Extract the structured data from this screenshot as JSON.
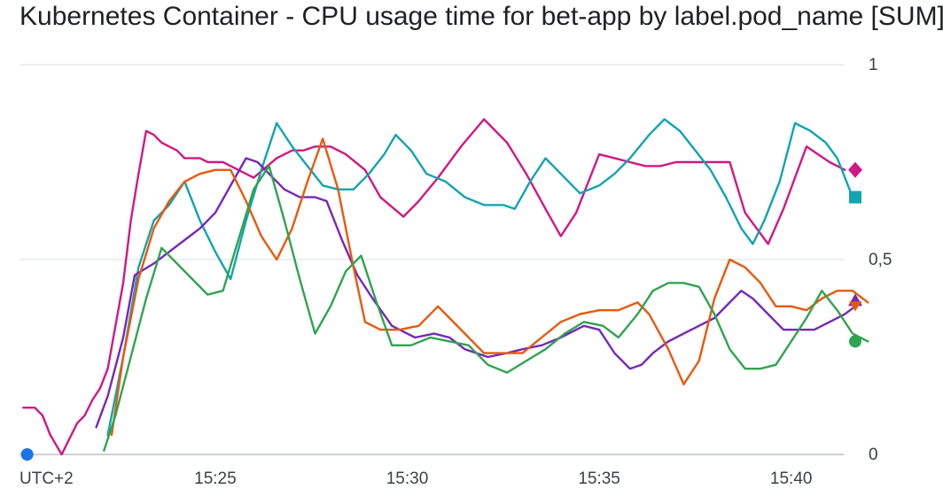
{
  "chart_data": {
    "type": "line",
    "title": "Kubernetes Container - CPU usage time for bet-app by label.pod_name [SUM]",
    "x_axis": {
      "timezone_label": "UTC+2",
      "tick_labels": [
        "15:25",
        "15:30",
        "15:35",
        "15:40"
      ],
      "tick_values": [
        25,
        30,
        35,
        40
      ],
      "range": [
        20.0,
        41.0
      ],
      "unit": "minutes past 15:00"
    },
    "y_axis": {
      "tick_labels": [
        "0",
        "0,5",
        "1"
      ],
      "tick_values": [
        0,
        0.5,
        1
      ],
      "range": [
        0,
        1
      ],
      "position": "right"
    },
    "grid": true,
    "legend": "none",
    "series": [
      {
        "color": "#1a73e8",
        "marker": "circle",
        "points": [
          [
            20.1,
            0.0
          ]
        ]
      },
      {
        "color": "#d01884",
        "marker": "diamond",
        "points": [
          [
            20.0,
            0.12
          ],
          [
            20.3,
            0.12
          ],
          [
            20.5,
            0.1
          ],
          [
            20.7,
            0.05
          ],
          [
            21.0,
            0.0
          ],
          [
            21.2,
            0.04
          ],
          [
            21.4,
            0.08
          ],
          [
            21.6,
            0.1
          ],
          [
            21.8,
            0.14
          ],
          [
            22.0,
            0.17
          ],
          [
            22.2,
            0.22
          ],
          [
            22.4,
            0.33
          ],
          [
            22.6,
            0.44
          ],
          [
            22.8,
            0.6
          ],
          [
            23.0,
            0.72
          ],
          [
            23.2,
            0.83
          ],
          [
            23.4,
            0.82
          ],
          [
            23.6,
            0.8
          ],
          [
            23.8,
            0.79
          ],
          [
            24.0,
            0.78
          ],
          [
            24.2,
            0.76
          ],
          [
            24.6,
            0.76
          ],
          [
            24.8,
            0.75
          ],
          [
            25.2,
            0.75
          ],
          [
            25.6,
            0.73
          ],
          [
            26.0,
            0.71
          ],
          [
            26.6,
            0.76
          ],
          [
            27.0,
            0.78
          ],
          [
            27.3,
            0.78
          ],
          [
            27.6,
            0.79
          ],
          [
            28.0,
            0.79
          ],
          [
            28.4,
            0.77
          ],
          [
            28.9,
            0.73
          ],
          [
            29.3,
            0.66
          ],
          [
            29.9,
            0.61
          ],
          [
            30.3,
            0.65
          ],
          [
            30.8,
            0.71
          ],
          [
            31.4,
            0.79
          ],
          [
            32.0,
            0.86
          ],
          [
            32.6,
            0.8
          ],
          [
            33.1,
            0.72
          ],
          [
            33.6,
            0.63
          ],
          [
            34.0,
            0.56
          ],
          [
            34.4,
            0.62
          ],
          [
            35.0,
            0.77
          ],
          [
            35.4,
            0.76
          ],
          [
            35.8,
            0.75
          ],
          [
            36.2,
            0.74
          ],
          [
            36.6,
            0.74
          ],
          [
            37.0,
            0.75
          ],
          [
            37.4,
            0.75
          ],
          [
            38.0,
            0.75
          ],
          [
            38.4,
            0.75
          ],
          [
            38.8,
            0.62
          ],
          [
            39.4,
            0.54
          ],
          [
            39.8,
            0.63
          ],
          [
            40.1,
            0.71
          ],
          [
            40.4,
            0.79
          ],
          [
            40.7,
            0.77
          ],
          [
            41.0,
            0.75
          ],
          [
            41.4,
            0.73
          ]
        ]
      },
      {
        "color": "#12a4af",
        "marker": "square",
        "points": [
          [
            22.2,
            0.05
          ],
          [
            22.6,
            0.25
          ],
          [
            23.0,
            0.48
          ],
          [
            23.4,
            0.6
          ],
          [
            23.8,
            0.64
          ],
          [
            24.2,
            0.7
          ],
          [
            24.6,
            0.6
          ],
          [
            25.0,
            0.52
          ],
          [
            25.4,
            0.45
          ],
          [
            25.8,
            0.6
          ],
          [
            26.2,
            0.73
          ],
          [
            26.6,
            0.85
          ],
          [
            27.0,
            0.79
          ],
          [
            27.4,
            0.74
          ],
          [
            27.8,
            0.69
          ],
          [
            28.2,
            0.68
          ],
          [
            28.6,
            0.68
          ],
          [
            29.0,
            0.72
          ],
          [
            29.4,
            0.77
          ],
          [
            29.7,
            0.82
          ],
          [
            30.1,
            0.78
          ],
          [
            30.5,
            0.72
          ],
          [
            31.0,
            0.7
          ],
          [
            31.5,
            0.66
          ],
          [
            32.0,
            0.64
          ],
          [
            32.5,
            0.64
          ],
          [
            32.8,
            0.63
          ],
          [
            33.2,
            0.7
          ],
          [
            33.6,
            0.76
          ],
          [
            34.0,
            0.72
          ],
          [
            34.5,
            0.67
          ],
          [
            35.0,
            0.69
          ],
          [
            35.4,
            0.72
          ],
          [
            35.8,
            0.76
          ],
          [
            36.3,
            0.82
          ],
          [
            36.7,
            0.86
          ],
          [
            37.1,
            0.83
          ],
          [
            37.5,
            0.78
          ],
          [
            37.9,
            0.73
          ],
          [
            38.3,
            0.66
          ],
          [
            38.7,
            0.58
          ],
          [
            39.0,
            0.54
          ],
          [
            39.3,
            0.6
          ],
          [
            39.7,
            0.7
          ],
          [
            40.1,
            0.85
          ],
          [
            40.5,
            0.83
          ],
          [
            40.9,
            0.8
          ],
          [
            41.2,
            0.76
          ],
          [
            41.6,
            0.66
          ]
        ]
      },
      {
        "color": "#7627bb",
        "marker": "triangle",
        "points": [
          [
            21.9,
            0.07
          ],
          [
            22.2,
            0.15
          ],
          [
            22.6,
            0.3
          ],
          [
            22.9,
            0.46
          ],
          [
            23.4,
            0.49
          ],
          [
            23.8,
            0.52
          ],
          [
            24.2,
            0.55
          ],
          [
            24.6,
            0.58
          ],
          [
            25.0,
            0.62
          ],
          [
            25.4,
            0.69
          ],
          [
            25.8,
            0.76
          ],
          [
            26.1,
            0.75
          ],
          [
            26.4,
            0.72
          ],
          [
            26.8,
            0.68
          ],
          [
            27.2,
            0.66
          ],
          [
            27.6,
            0.66
          ],
          [
            27.9,
            0.65
          ],
          [
            28.3,
            0.55
          ],
          [
            28.7,
            0.46
          ],
          [
            29.1,
            0.4
          ],
          [
            29.6,
            0.33
          ],
          [
            30.2,
            0.3
          ],
          [
            30.7,
            0.31
          ],
          [
            31.1,
            0.3
          ],
          [
            31.5,
            0.27
          ],
          [
            32.1,
            0.25
          ],
          [
            32.6,
            0.26
          ],
          [
            33.0,
            0.27
          ],
          [
            33.5,
            0.28
          ],
          [
            34.0,
            0.3
          ],
          [
            34.6,
            0.33
          ],
          [
            35.0,
            0.32
          ],
          [
            35.4,
            0.26
          ],
          [
            35.8,
            0.22
          ],
          [
            36.1,
            0.23
          ],
          [
            36.4,
            0.26
          ],
          [
            36.8,
            0.29
          ],
          [
            37.2,
            0.31
          ],
          [
            37.6,
            0.33
          ],
          [
            38.0,
            0.35
          ],
          [
            38.4,
            0.39
          ],
          [
            38.7,
            0.42
          ],
          [
            39.0,
            0.4
          ],
          [
            39.4,
            0.36
          ],
          [
            39.8,
            0.32
          ],
          [
            40.2,
            0.32
          ],
          [
            40.6,
            0.32
          ],
          [
            41.0,
            0.34
          ],
          [
            41.4,
            0.36
          ],
          [
            41.8,
            0.39
          ]
        ]
      },
      {
        "color": "#e8590c",
        "marker": "triangle-down",
        "points": [
          [
            22.3,
            0.05
          ],
          [
            22.6,
            0.25
          ],
          [
            23.0,
            0.45
          ],
          [
            23.4,
            0.58
          ],
          [
            23.8,
            0.65
          ],
          [
            24.2,
            0.7
          ],
          [
            24.6,
            0.72
          ],
          [
            25.0,
            0.73
          ],
          [
            25.4,
            0.73
          ],
          [
            25.8,
            0.65
          ],
          [
            26.2,
            0.56
          ],
          [
            26.6,
            0.5
          ],
          [
            27.0,
            0.58
          ],
          [
            27.4,
            0.7
          ],
          [
            27.8,
            0.81
          ],
          [
            28.2,
            0.68
          ],
          [
            28.6,
            0.48
          ],
          [
            28.9,
            0.34
          ],
          [
            29.3,
            0.32
          ],
          [
            29.8,
            0.32
          ],
          [
            30.3,
            0.33
          ],
          [
            30.8,
            0.38
          ],
          [
            31.2,
            0.34
          ],
          [
            31.6,
            0.3
          ],
          [
            32.0,
            0.26
          ],
          [
            32.5,
            0.26
          ],
          [
            33.0,
            0.26
          ],
          [
            33.5,
            0.3
          ],
          [
            34.0,
            0.34
          ],
          [
            34.5,
            0.36
          ],
          [
            35.0,
            0.37
          ],
          [
            35.5,
            0.37
          ],
          [
            36.0,
            0.39
          ],
          [
            36.3,
            0.36
          ],
          [
            36.8,
            0.27
          ],
          [
            37.2,
            0.18
          ],
          [
            37.6,
            0.24
          ],
          [
            38.0,
            0.4
          ],
          [
            38.4,
            0.5
          ],
          [
            38.8,
            0.48
          ],
          [
            39.2,
            0.44
          ],
          [
            39.6,
            0.38
          ],
          [
            40.0,
            0.38
          ],
          [
            40.4,
            0.37
          ],
          [
            40.8,
            0.4
          ],
          [
            41.2,
            0.42
          ],
          [
            41.6,
            0.42
          ],
          [
            42.0,
            0.39
          ]
        ]
      },
      {
        "color": "#2ea44f",
        "marker": "circle",
        "points": [
          [
            22.1,
            0.01
          ],
          [
            22.4,
            0.1
          ],
          [
            22.8,
            0.25
          ],
          [
            23.2,
            0.4
          ],
          [
            23.6,
            0.53
          ],
          [
            24.0,
            0.49
          ],
          [
            24.4,
            0.45
          ],
          [
            24.8,
            0.41
          ],
          [
            25.2,
            0.42
          ],
          [
            25.6,
            0.55
          ],
          [
            26.0,
            0.68
          ],
          [
            26.4,
            0.74
          ],
          [
            26.8,
            0.6
          ],
          [
            27.2,
            0.45
          ],
          [
            27.6,
            0.31
          ],
          [
            28.0,
            0.38
          ],
          [
            28.4,
            0.47
          ],
          [
            28.8,
            0.51
          ],
          [
            29.2,
            0.39
          ],
          [
            29.6,
            0.28
          ],
          [
            30.1,
            0.28
          ],
          [
            30.6,
            0.3
          ],
          [
            31.1,
            0.29
          ],
          [
            31.6,
            0.28
          ],
          [
            32.1,
            0.23
          ],
          [
            32.6,
            0.21
          ],
          [
            33.1,
            0.24
          ],
          [
            33.6,
            0.27
          ],
          [
            34.1,
            0.31
          ],
          [
            34.6,
            0.34
          ],
          [
            35.1,
            0.33
          ],
          [
            35.5,
            0.3
          ],
          [
            36.0,
            0.36
          ],
          [
            36.4,
            0.42
          ],
          [
            36.8,
            0.44
          ],
          [
            37.2,
            0.44
          ],
          [
            37.6,
            0.43
          ],
          [
            38.0,
            0.36
          ],
          [
            38.4,
            0.27
          ],
          [
            38.8,
            0.22
          ],
          [
            39.2,
            0.22
          ],
          [
            39.6,
            0.23
          ],
          [
            40.0,
            0.29
          ],
          [
            40.4,
            0.35
          ],
          [
            40.8,
            0.42
          ],
          [
            41.2,
            0.37
          ],
          [
            41.6,
            0.31
          ],
          [
            42.0,
            0.29
          ]
        ]
      }
    ]
  }
}
